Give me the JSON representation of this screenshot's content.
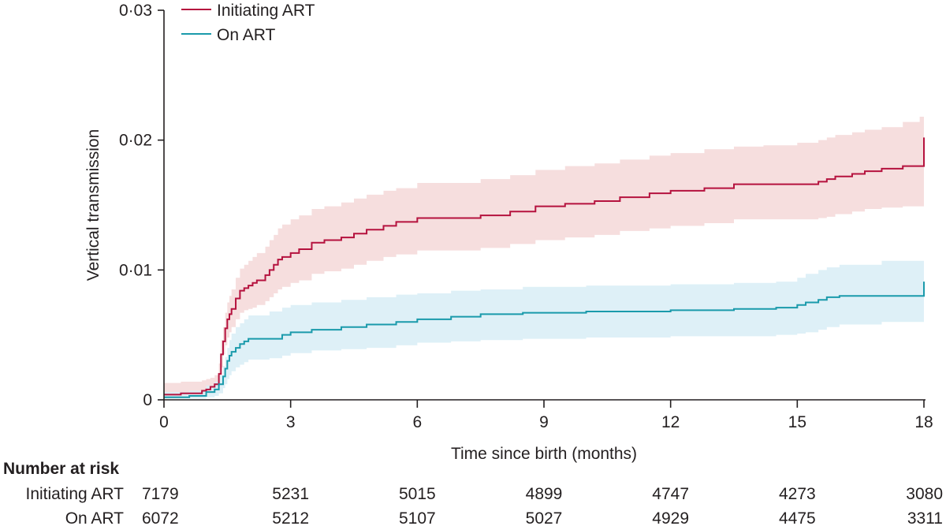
{
  "chart_data": {
    "type": "line",
    "xlabel": "Time since birth (months)",
    "ylabel": "Vertical transmission",
    "xlim": [
      0,
      18
    ],
    "ylim": [
      0,
      0.03
    ],
    "x_ticks": [
      0,
      3,
      6,
      9,
      12,
      15,
      18
    ],
    "y_ticks": [
      {
        "value": 0,
        "label": "0"
      },
      {
        "value": 0.01,
        "label": "0·01"
      },
      {
        "value": 0.02,
        "label": "0·02"
      },
      {
        "value": 0.03,
        "label": "0·03"
      }
    ],
    "legend_position": "top-left",
    "grid": false,
    "series": [
      {
        "name": "Initiating ART",
        "color": "#b5123e",
        "band_color": "#f5dada",
        "x": [
          0,
          0.4,
          0.9,
          1.0,
          1.1,
          1.2,
          1.3,
          1.35,
          1.4,
          1.45,
          1.5,
          1.55,
          1.6,
          1.7,
          1.8,
          1.9,
          2.0,
          2.1,
          2.2,
          2.4,
          2.5,
          2.6,
          2.7,
          2.8,
          3.0,
          3.2,
          3.5,
          3.8,
          4.2,
          4.5,
          4.8,
          5.2,
          5.5,
          6.0,
          7.5,
          8.2,
          8.8,
          9.5,
          10.2,
          10.8,
          11.5,
          12.0,
          12.8,
          13.5,
          14.2,
          15.0,
          15.5,
          15.7,
          15.9,
          16.3,
          16.6,
          17.0,
          17.5,
          17.9,
          18.0
        ],
        "y": [
          0.0004,
          0.0005,
          0.0007,
          0.0008,
          0.001,
          0.0012,
          0.002,
          0.0035,
          0.0045,
          0.0055,
          0.0062,
          0.0066,
          0.007,
          0.0078,
          0.0084,
          0.0086,
          0.0088,
          0.009,
          0.0092,
          0.0096,
          0.01,
          0.0104,
          0.0108,
          0.011,
          0.0113,
          0.0116,
          0.0121,
          0.0123,
          0.0125,
          0.0128,
          0.0131,
          0.0134,
          0.0137,
          0.014,
          0.0142,
          0.0145,
          0.0149,
          0.0151,
          0.0153,
          0.0156,
          0.0159,
          0.0161,
          0.0163,
          0.0166,
          0.0166,
          0.0166,
          0.0168,
          0.017,
          0.0172,
          0.0174,
          0.0176,
          0.0178,
          0.018,
          0.018,
          0.0202
        ],
        "lower": [
          0.0002,
          0.0002,
          0.0003,
          0.0004,
          0.0005,
          0.0007,
          0.0012,
          0.0025,
          0.0035,
          0.0042,
          0.0048,
          0.0052,
          0.0056,
          0.0062,
          0.0067,
          0.0069,
          0.007,
          0.0071,
          0.0073,
          0.0076,
          0.0079,
          0.0082,
          0.0085,
          0.0087,
          0.009,
          0.0092,
          0.0097,
          0.0099,
          0.0101,
          0.0104,
          0.0107,
          0.011,
          0.0112,
          0.0115,
          0.0117,
          0.012,
          0.0123,
          0.0125,
          0.0127,
          0.013,
          0.0132,
          0.0134,
          0.0136,
          0.0139,
          0.0139,
          0.0139,
          0.014,
          0.0141,
          0.0143,
          0.0145,
          0.0147,
          0.0148,
          0.0149,
          0.0149,
          0.0149
        ],
        "upper": [
          0.0013,
          0.0014,
          0.0015,
          0.0016,
          0.0017,
          0.0019,
          0.0028,
          0.0046,
          0.0056,
          0.0067,
          0.0075,
          0.008,
          0.0085,
          0.0094,
          0.0101,
          0.0104,
          0.0107,
          0.011,
          0.0113,
          0.0118,
          0.0123,
          0.0127,
          0.0132,
          0.0135,
          0.0139,
          0.0142,
          0.0147,
          0.0149,
          0.0152,
          0.0155,
          0.0158,
          0.0161,
          0.0163,
          0.0167,
          0.017,
          0.0173,
          0.0177,
          0.018,
          0.0182,
          0.0185,
          0.0188,
          0.019,
          0.0193,
          0.0195,
          0.0196,
          0.0198,
          0.02,
          0.0202,
          0.0204,
          0.0206,
          0.0208,
          0.021,
          0.0214,
          0.0218,
          0.0219
        ]
      },
      {
        "name": "On ART",
        "color": "#1a9aab",
        "band_color": "#daeef6",
        "x": [
          0,
          0.6,
          1.0,
          1.2,
          1.3,
          1.4,
          1.45,
          1.5,
          1.55,
          1.6,
          1.7,
          1.8,
          1.9,
          2.0,
          2.5,
          2.8,
          3.0,
          3.5,
          4.2,
          4.8,
          5.5,
          6.0,
          6.8,
          7.5,
          8.5,
          10.0,
          12.0,
          13.5,
          14.5,
          15.0,
          15.2,
          15.5,
          15.7,
          16.0,
          17.0,
          18.0
        ],
        "y": [
          0.0002,
          0.0003,
          0.0006,
          0.0008,
          0.0012,
          0.0018,
          0.0024,
          0.003,
          0.0034,
          0.0037,
          0.004,
          0.0043,
          0.0045,
          0.0047,
          0.0047,
          0.005,
          0.0052,
          0.0054,
          0.0056,
          0.0058,
          0.006,
          0.0062,
          0.0064,
          0.0066,
          0.0067,
          0.0068,
          0.0069,
          0.007,
          0.0071,
          0.0073,
          0.0075,
          0.0077,
          0.0079,
          0.008,
          0.008,
          0.0091
        ],
        "lower": [
          0.0001,
          0.0001,
          0.0002,
          0.0003,
          0.0005,
          0.0009,
          0.0012,
          0.0016,
          0.0019,
          0.0022,
          0.0025,
          0.0027,
          0.0029,
          0.0031,
          0.0032,
          0.0034,
          0.0036,
          0.0038,
          0.0039,
          0.004,
          0.0042,
          0.0044,
          0.0045,
          0.0046,
          0.0047,
          0.0048,
          0.0049,
          0.0049,
          0.005,
          0.0051,
          0.0052,
          0.0054,
          0.0056,
          0.0058,
          0.006,
          0.0061
        ],
        "upper": [
          0.0006,
          0.0007,
          0.0011,
          0.0014,
          0.0019,
          0.0026,
          0.0033,
          0.004,
          0.0046,
          0.0051,
          0.0056,
          0.0059,
          0.0062,
          0.0065,
          0.0068,
          0.0071,
          0.0073,
          0.0075,
          0.0077,
          0.0079,
          0.0081,
          0.0082,
          0.0084,
          0.0085,
          0.0087,
          0.0088,
          0.0089,
          0.009,
          0.0091,
          0.0094,
          0.0097,
          0.01,
          0.0102,
          0.0104,
          0.0107,
          0.0112
        ]
      }
    ],
    "number_at_risk": {
      "title": "Number at risk",
      "rows": [
        {
          "label": "Initiating ART",
          "values": [
            "7179",
            "5231",
            "5015",
            "4899",
            "4747",
            "4273",
            "3080"
          ]
        },
        {
          "label": "On ART",
          "values": [
            "6072",
            "5212",
            "5107",
            "5027",
            "4929",
            "4475",
            "3311"
          ]
        }
      ]
    }
  }
}
